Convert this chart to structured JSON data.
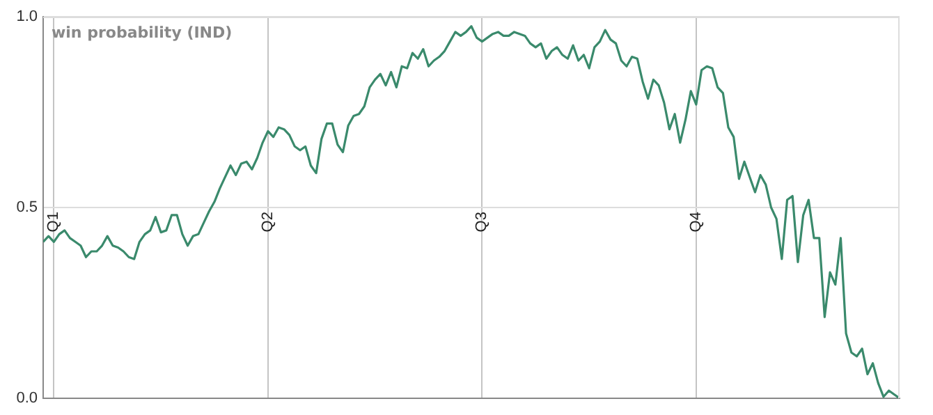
{
  "chart_data": {
    "type": "line",
    "title": "win probability (IND)",
    "grid": true,
    "legend": false,
    "marker": "none",
    "line_style": "solid",
    "categories": [
      null,
      null,
      "Q1",
      null,
      null,
      null,
      null,
      null,
      null,
      null,
      null,
      null,
      null,
      null,
      null,
      null,
      null,
      null,
      null,
      null,
      null,
      null,
      null,
      null,
      null,
      null,
      null,
      null,
      null,
      null,
      null,
      null,
      null,
      null,
      null,
      null,
      null,
      null,
      null,
      null,
      null,
      null,
      "Q2",
      null,
      null,
      null,
      null,
      null,
      null,
      null,
      null,
      null,
      null,
      null,
      null,
      null,
      null,
      null,
      null,
      null,
      null,
      null,
      null,
      null,
      null,
      null,
      null,
      null,
      null,
      null,
      null,
      null,
      null,
      null,
      null,
      null,
      null,
      null,
      null,
      null,
      null,
      null,
      "Q3",
      null,
      null,
      null,
      null,
      null,
      null,
      null,
      null,
      null,
      null,
      null,
      null,
      null,
      null,
      null,
      null,
      null,
      null,
      null,
      null,
      null,
      null,
      null,
      null,
      null,
      null,
      null,
      null,
      null,
      null,
      null,
      null,
      null,
      null,
      null,
      null,
      null,
      null,
      null,
      "Q4",
      null,
      null,
      null,
      null,
      null,
      null,
      null,
      null,
      null,
      null,
      null,
      null,
      null,
      null,
      null,
      null,
      null,
      null,
      null,
      null,
      null,
      null,
      null,
      null,
      null,
      null,
      null,
      null,
      null,
      null,
      null,
      null,
      null,
      null,
      null,
      null,
      null,
      null
    ],
    "ylim": [
      0,
      1
    ],
    "yticks": [
      {
        "value": 0,
        "label": "0.0"
      },
      0.5,
      {
        "value": 1,
        "label": "1.0"
      }
    ],
    "series": [
      {
        "color": "#3a8a6c",
        "values": [
          0.41,
          0.425,
          0.41,
          0.43,
          0.44,
          0.42,
          0.41,
          0.4,
          0.37,
          0.385,
          0.385,
          0.4,
          0.425,
          0.4,
          0.395,
          0.385,
          0.37,
          0.365,
          0.41,
          0.43,
          0.44,
          0.475,
          0.435,
          0.44,
          0.48,
          0.48,
          0.43,
          0.4,
          0.425,
          0.43,
          0.46,
          0.49,
          0.515,
          0.55,
          0.58,
          0.61,
          0.585,
          0.615,
          0.62,
          0.6,
          0.63,
          0.67,
          0.7,
          0.685,
          0.71,
          0.705,
          0.69,
          0.66,
          0.65,
          0.66,
          0.61,
          0.59,
          0.68,
          0.72,
          0.72,
          0.665,
          0.645,
          0.715,
          0.74,
          0.745,
          0.765,
          0.815,
          0.835,
          0.85,
          0.82,
          0.855,
          0.815,
          0.87,
          0.865,
          0.905,
          0.89,
          0.915,
          0.87,
          0.885,
          0.895,
          0.91,
          0.935,
          0.96,
          0.95,
          0.96,
          0.975,
          0.945,
          0.935,
          0.945,
          0.955,
          0.96,
          0.95,
          0.95,
          0.96,
          0.955,
          0.95,
          0.93,
          0.92,
          0.93,
          0.89,
          0.91,
          0.92,
          0.9,
          0.89,
          0.925,
          0.885,
          0.9,
          0.865,
          0.92,
          0.935,
          0.965,
          0.94,
          0.93,
          0.885,
          0.87,
          0.895,
          0.89,
          0.83,
          0.785,
          0.835,
          0.82,
          0.775,
          0.705,
          0.745,
          0.67,
          0.73,
          0.805,
          0.77,
          0.86,
          0.87,
          0.865,
          0.815,
          0.8,
          0.71,
          0.685,
          0.575,
          0.62,
          0.58,
          0.54,
          0.585,
          0.56,
          0.5,
          0.47,
          0.365,
          0.52,
          0.53,
          0.357,
          0.48,
          0.52,
          0.42,
          0.42,
          0.213,
          0.33,
          0.298,
          0.42,
          0.17,
          0.12,
          0.11,
          0.13,
          0.063,
          0.092,
          0.04,
          0.004,
          0.02,
          0.01,
          0
        ]
      }
    ]
  }
}
